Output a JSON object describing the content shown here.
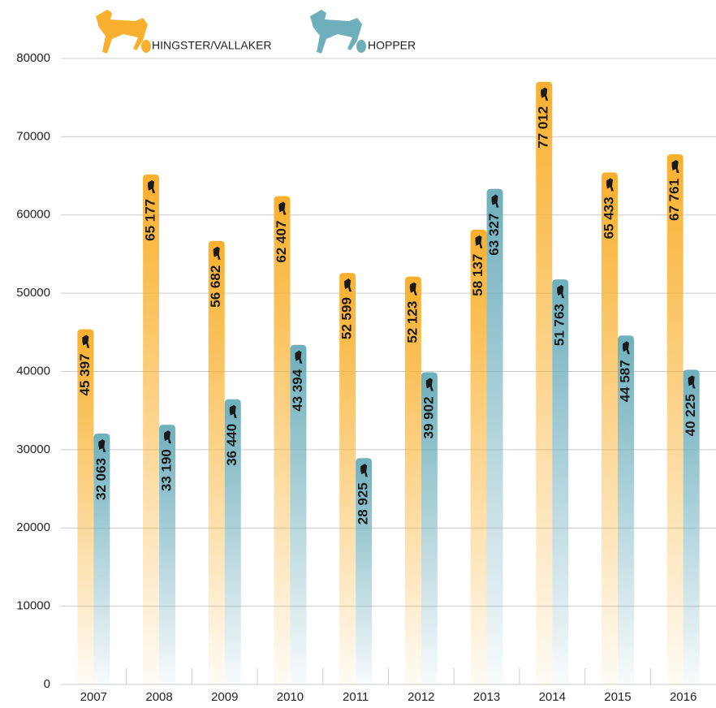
{
  "chart_data": {
    "type": "bar",
    "categories": [
      "2007",
      "2008",
      "2009",
      "2010",
      "2011",
      "2012",
      "2013",
      "2014",
      "2015",
      "2016"
    ],
    "series": [
      {
        "name": "HINGSTER/VALLAKER",
        "color": "#f9b02e",
        "values": [
          45397,
          65177,
          56682,
          62407,
          52599,
          52123,
          58137,
          77012,
          65433,
          67761
        ],
        "value_labels": [
          "45 397",
          "65 177",
          "56 682",
          "62 407",
          "52 599",
          "52 123",
          "58 137",
          "77 012",
          "65 433",
          "67 761"
        ]
      },
      {
        "name": "HOPPER",
        "color": "#6fafbc",
        "values": [
          32063,
          33190,
          36440,
          43394,
          28925,
          39902,
          63327,
          51763,
          44587,
          40225
        ],
        "value_labels": [
          "32 063",
          "33 190",
          "36 440",
          "43 394",
          "28 925",
          "39 902",
          "63 327",
          "51 763",
          "44 587",
          "40 225"
        ]
      }
    ],
    "ylim": [
      0,
      80000
    ],
    "yticks": [
      0,
      10000,
      20000,
      30000,
      40000,
      50000,
      60000,
      70000,
      80000
    ],
    "grid": true
  }
}
